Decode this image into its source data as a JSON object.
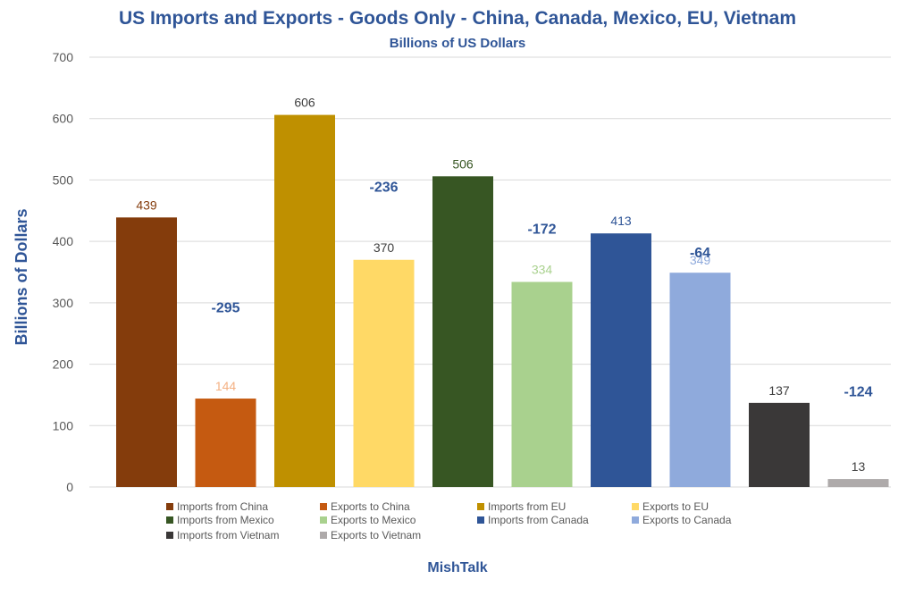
{
  "chart_data": {
    "type": "bar",
    "title": "US Imports and Exports - Goods Only - China, Canada, Mexico, EU, Vietnam",
    "subtitle": "Billions of US Dollars",
    "ylabel": "Billions of Dollars",
    "xlabel": "",
    "ylim": [
      0,
      700
    ],
    "yticks": [
      "0",
      "100",
      "200",
      "300",
      "400",
      "500",
      "600",
      "700"
    ],
    "grid": true,
    "legend_position": "bottom",
    "footer": "MishTalk",
    "bars": [
      {
        "name": "Imports from China",
        "value": 439,
        "label": "439",
        "color": "#843C0C",
        "label_color": "#843C0C"
      },
      {
        "name": "Exports to China",
        "value": 144,
        "label": "144",
        "color": "#C55A11",
        "label_color": "#F4B183"
      },
      {
        "name": "Imports from EU",
        "value": 606,
        "label": "606",
        "color": "#BF9000",
        "label_color": "#404040"
      },
      {
        "name": "Exports to EU",
        "value": 370,
        "label": "370",
        "color": "#FFD966",
        "label_color": "#404040"
      },
      {
        "name": "Imports from Mexico",
        "value": 506,
        "label": "506",
        "color": "#375623",
        "label_color": "#375623"
      },
      {
        "name": "Exports to Mexico",
        "value": 334,
        "label": "334",
        "color": "#A9D18E",
        "label_color": "#A9D18E"
      },
      {
        "name": "Imports from Canada",
        "value": 413,
        "label": "413",
        "color": "#2F5597",
        "label_color": "#2F5597"
      },
      {
        "name": "Exports to Canada",
        "value": 349,
        "label": "349",
        "color": "#8FAADC",
        "label_color": "#8FAADC"
      },
      {
        "name": "Imports from Vietnam",
        "value": 137,
        "label": "137",
        "color": "#3A3838",
        "label_color": "#404040"
      },
      {
        "name": "Exports to Vietnam",
        "value": 13,
        "label": "13",
        "color": "#AEAAAA",
        "label_color": "#404040"
      }
    ],
    "balances": [
      {
        "pair": "China",
        "value": -295,
        "label": "-295"
      },
      {
        "pair": "EU",
        "value": -236,
        "label": "-236"
      },
      {
        "pair": "Mexico",
        "value": -172,
        "label": "-172"
      },
      {
        "pair": "Canada",
        "value": -64,
        "label": "-64"
      },
      {
        "pair": "Vietnam",
        "value": -124,
        "label": "-124"
      }
    ],
    "colors": {
      "title": "#2F5597",
      "balance_label": "#2F5597",
      "axis_text": "#595959",
      "gridline": "#D9D9D9",
      "legend_text": "#595959"
    }
  }
}
